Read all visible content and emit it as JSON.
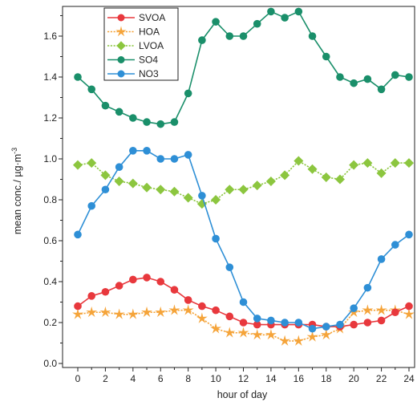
{
  "chart_data": {
    "type": "line",
    "xlabel": "hour of day",
    "ylabel": "mean conc./ µg·m",
    "ylabel_superscript": "-3",
    "xlim": [
      -0.5,
      24.3
    ],
    "ylim": [
      0,
      1.72
    ],
    "x_ticks": [
      0,
      2,
      4,
      6,
      8,
      10,
      12,
      14,
      16,
      18,
      20,
      22,
      24
    ],
    "x_tick_labels": [
      "0",
      "2",
      "4",
      "6",
      "8",
      "10",
      "12",
      "14",
      "16",
      "18",
      "20",
      "22",
      "24"
    ],
    "y_ticks": [
      0.0,
      0.2,
      0.4,
      0.6,
      0.8,
      1.0,
      1.2,
      1.4,
      1.6
    ],
    "y_tick_labels": [
      "0.0",
      "0.2",
      "0.4",
      "0.6",
      "0.8",
      "1.0",
      "1.2",
      "1.4",
      "1.6"
    ],
    "grid": false,
    "legend_position": "top-left",
    "x": [
      0,
      1,
      2,
      3,
      4,
      5,
      6,
      7,
      8,
      9,
      10,
      11,
      12,
      13,
      14,
      15,
      16,
      17,
      18,
      19,
      20,
      21,
      22,
      23,
      24
    ],
    "series": [
      {
        "name": "SVOA",
        "color": "#e8383d",
        "marker": "circle",
        "values": [
          0.28,
          0.33,
          0.35,
          0.38,
          0.41,
          0.42,
          0.4,
          0.36,
          0.31,
          0.28,
          0.26,
          0.23,
          0.2,
          0.19,
          0.19,
          0.19,
          0.19,
          0.19,
          0.18,
          0.18,
          0.19,
          0.2,
          0.21,
          0.25,
          0.28
        ]
      },
      {
        "name": "HOA",
        "color": "#f5a43a",
        "marker": "star",
        "values": [
          0.24,
          0.25,
          0.25,
          0.24,
          0.24,
          0.25,
          0.25,
          0.26,
          0.26,
          0.22,
          0.17,
          0.15,
          0.15,
          0.14,
          0.14,
          0.11,
          0.11,
          0.13,
          0.14,
          0.17,
          0.25,
          0.26,
          0.26,
          0.26,
          0.24
        ]
      },
      {
        "name": "LVOA",
        "color": "#8cc63f",
        "marker": "diamond",
        "values": [
          0.97,
          0.98,
          0.92,
          0.89,
          0.88,
          0.86,
          0.85,
          0.84,
          0.81,
          0.78,
          0.8,
          0.85,
          0.85,
          0.87,
          0.89,
          0.92,
          0.99,
          0.95,
          0.91,
          0.9,
          0.97,
          0.98,
          0.93,
          0.98,
          0.98
        ]
      },
      {
        "name": "SO4",
        "color": "#1a8f6a",
        "marker": "circle",
        "values": [
          1.4,
          1.34,
          1.26,
          1.23,
          1.2,
          1.18,
          1.17,
          1.18,
          1.32,
          1.58,
          1.67,
          1.6,
          1.6,
          1.66,
          1.72,
          1.69,
          1.72,
          1.6,
          1.5,
          1.4,
          1.37,
          1.39,
          1.34,
          1.41,
          1.4
        ]
      },
      {
        "name": "NO3",
        "color": "#2e8fd6",
        "marker": "circle",
        "values": [
          0.63,
          0.77,
          0.85,
          0.96,
          1.04,
          1.04,
          1.0,
          1.0,
          1.02,
          0.82,
          0.61,
          0.47,
          0.3,
          0.22,
          0.21,
          0.2,
          0.2,
          0.17,
          0.18,
          0.19,
          0.27,
          0.37,
          0.51,
          0.58,
          0.63
        ]
      }
    ]
  }
}
